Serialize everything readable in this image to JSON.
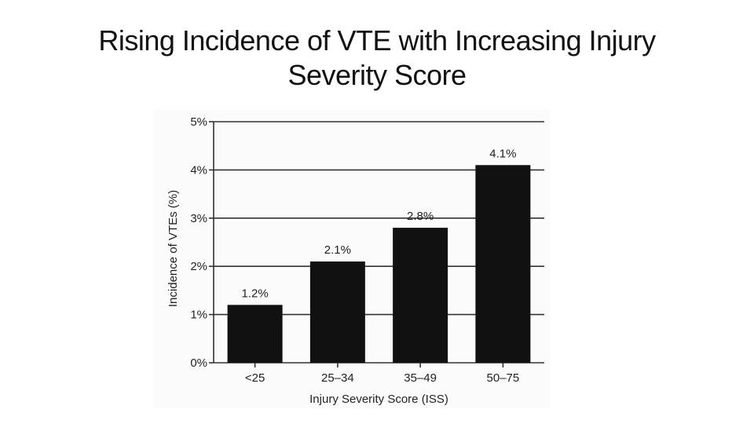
{
  "slide": {
    "title_line1": "Rising Incidence of VTE with Increasing Injury",
    "title_line2": "Severity Score"
  },
  "chart_data": {
    "type": "bar",
    "categories": [
      "<25",
      "25–34",
      "35–49",
      "50–75"
    ],
    "values": [
      1.2,
      2.1,
      2.8,
      4.1
    ],
    "data_labels": [
      "1.2%",
      "2.1%",
      "2.8%",
      "4.1%"
    ],
    "xlabel": "Injury Severity Score (ISS)",
    "ylabel": "Incidence of VTEs (%)",
    "ylim": [
      0,
      5
    ],
    "yticks": [
      0,
      1,
      2,
      3,
      4,
      5
    ],
    "ytick_labels": [
      "0%",
      "1%",
      "2%",
      "3%",
      "4%",
      "5%"
    ],
    "grid": true,
    "legend": "none",
    "bar_color": "#111111",
    "grid_color": "#333333"
  }
}
